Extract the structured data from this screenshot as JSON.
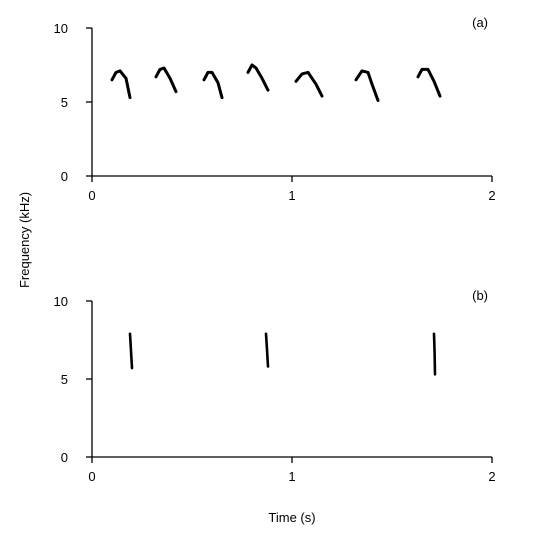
{
  "chart_data": [
    {
      "type": "scatter",
      "panel_label": "(a)",
      "shared_ylabel": "Frequency (kHz)",
      "xlabel": "",
      "xlim": [
        0,
        2
      ],
      "ylim": [
        0,
        10
      ],
      "x_ticks": [
        "0",
        "1",
        "2"
      ],
      "y_ticks": [
        "0",
        "5",
        "10"
      ],
      "syllables": [
        {
          "points": [
            [
              0.1,
              6.5
            ],
            [
              0.12,
              7.0
            ],
            [
              0.14,
              7.1
            ],
            [
              0.17,
              6.6
            ],
            [
              0.19,
              5.3
            ]
          ]
        },
        {
          "points": [
            [
              0.32,
              6.7
            ],
            [
              0.34,
              7.2
            ],
            [
              0.36,
              7.3
            ],
            [
              0.39,
              6.6
            ],
            [
              0.42,
              5.7
            ]
          ]
        },
        {
          "points": [
            [
              0.56,
              6.5
            ],
            [
              0.58,
              7.0
            ],
            [
              0.6,
              7.0
            ],
            [
              0.63,
              6.3
            ],
            [
              0.65,
              5.3
            ]
          ]
        },
        {
          "points": [
            [
              0.78,
              7.0
            ],
            [
              0.8,
              7.5
            ],
            [
              0.82,
              7.3
            ],
            [
              0.85,
              6.6
            ],
            [
              0.88,
              5.8
            ]
          ]
        },
        {
          "points": [
            [
              1.02,
              6.4
            ],
            [
              1.05,
              6.9
            ],
            [
              1.08,
              7.0
            ],
            [
              1.12,
              6.2
            ],
            [
              1.15,
              5.4
            ]
          ]
        },
        {
          "points": [
            [
              1.32,
              6.5
            ],
            [
              1.35,
              7.1
            ],
            [
              1.38,
              7.0
            ],
            [
              1.4,
              6.2
            ],
            [
              1.43,
              5.1
            ]
          ]
        },
        {
          "points": [
            [
              1.63,
              6.7
            ],
            [
              1.65,
              7.2
            ],
            [
              1.68,
              7.2
            ],
            [
              1.71,
              6.4
            ],
            [
              1.74,
              5.4
            ]
          ]
        }
      ]
    },
    {
      "type": "scatter",
      "panel_label": "(b)",
      "xlabel": "Time (s)",
      "xlim": [
        0,
        2
      ],
      "ylim": [
        0,
        10
      ],
      "x_ticks": [
        "0",
        "1",
        "2"
      ],
      "y_ticks": [
        "0",
        "5",
        "10"
      ],
      "syllables": [
        {
          "points": [
            [
              0.19,
              7.9
            ],
            [
              0.195,
              6.8
            ],
            [
              0.2,
              5.7
            ]
          ]
        },
        {
          "points": [
            [
              0.87,
              7.9
            ],
            [
              0.875,
              6.9
            ],
            [
              0.88,
              5.8
            ]
          ]
        },
        {
          "points": [
            [
              1.71,
              7.9
            ],
            [
              1.713,
              6.7
            ],
            [
              1.715,
              5.3
            ]
          ]
        }
      ]
    }
  ]
}
